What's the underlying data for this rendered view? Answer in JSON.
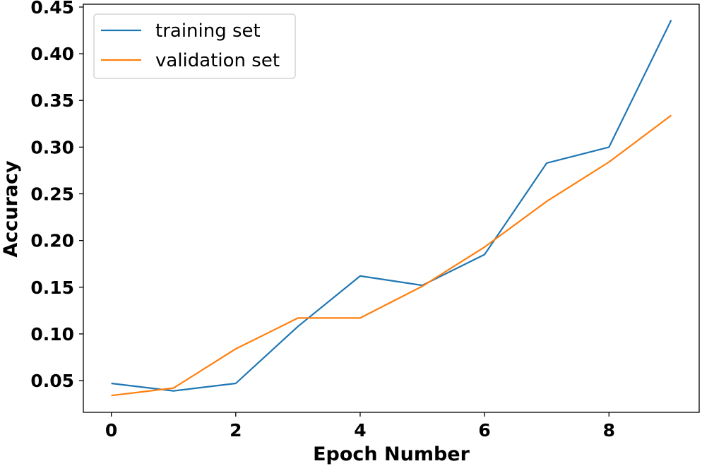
{
  "chart_data": {
    "type": "line",
    "title": "",
    "xlabel": "Epoch Number",
    "ylabel": "Accuracy",
    "x": [
      0,
      1,
      2,
      3,
      4,
      5,
      6,
      7,
      8,
      9
    ],
    "xlim": [
      -0.45,
      9.45
    ],
    "ylim": [
      0.016,
      0.453
    ],
    "xticks": [
      0,
      2,
      4,
      6,
      8
    ],
    "xtick_labels": [
      "0",
      "2",
      "4",
      "6",
      "8"
    ],
    "yticks": [
      0.05,
      0.1,
      0.15,
      0.2,
      0.25,
      0.3,
      0.35,
      0.4,
      0.45
    ],
    "ytick_labels": [
      "0.05",
      "0.10",
      "0.15",
      "0.20",
      "0.25",
      "0.30",
      "0.35",
      "0.40",
      "0.45"
    ],
    "grid": false,
    "legend_position": "top-left",
    "series": [
      {
        "name": "training set",
        "color": "#1f77b4",
        "values": [
          0.047,
          0.039,
          0.047,
          0.108,
          0.162,
          0.152,
          0.185,
          0.283,
          0.3,
          0.436
        ]
      },
      {
        "name": "validation set",
        "color": "#ff7f0e",
        "values": [
          0.034,
          0.042,
          0.084,
          0.117,
          0.117,
          0.151,
          0.193,
          0.242,
          0.284,
          0.334
        ]
      }
    ]
  }
}
